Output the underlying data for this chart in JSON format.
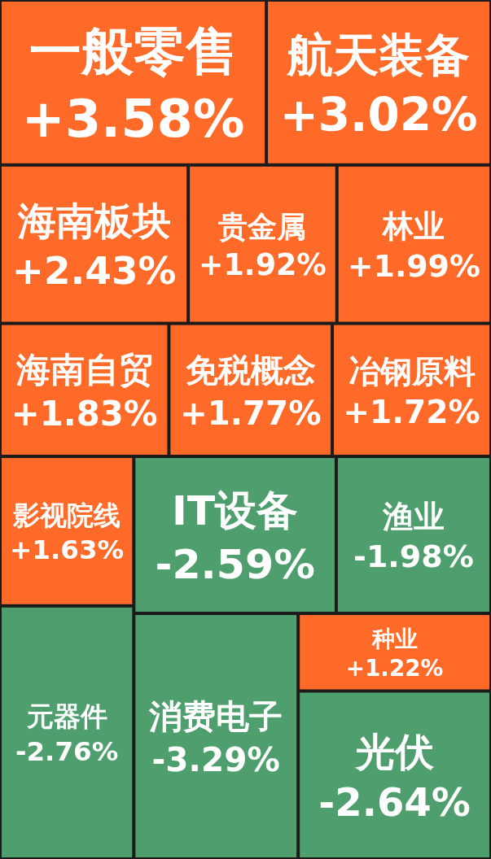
{
  "chart_data": {
    "type": "other",
    "categories": [
      "一般零售",
      "航天装备",
      "海南板块",
      "贵金属",
      "林业",
      "海南自贸",
      "免税概念",
      "冶钢原料",
      "影视院线",
      "元器件",
      "IT设备",
      "渔业",
      "消费电子",
      "种业",
      "光伏"
    ],
    "values": [
      3.58,
      3.02,
      2.43,
      1.92,
      1.99,
      1.83,
      1.77,
      1.72,
      1.63,
      -2.76,
      -2.59,
      -1.98,
      -3.29,
      1.22,
      -2.64
    ],
    "value_labels": [
      "+3.58%",
      "+3.02%",
      "+2.43%",
      "+1.92%",
      "+1.99%",
      "+1.83%",
      "+1.77%",
      "+1.72%",
      "+1.63%",
      "-2.76%",
      "-2.59%",
      "-1.98%",
      "-3.29%",
      "+1.22%",
      "-2.64%"
    ],
    "colors": [
      "#ff6a28",
      "#ff6a28",
      "#ff6a28",
      "#ff6a28",
      "#ff6a28",
      "#ff6a28",
      "#ff6a28",
      "#ff6a28",
      "#ff6a28",
      "#4e9e6e",
      "#4e9e6e",
      "#4e9e6e",
      "#4e9e6e",
      "#ff6a28",
      "#4e9e6e"
    ]
  }
}
